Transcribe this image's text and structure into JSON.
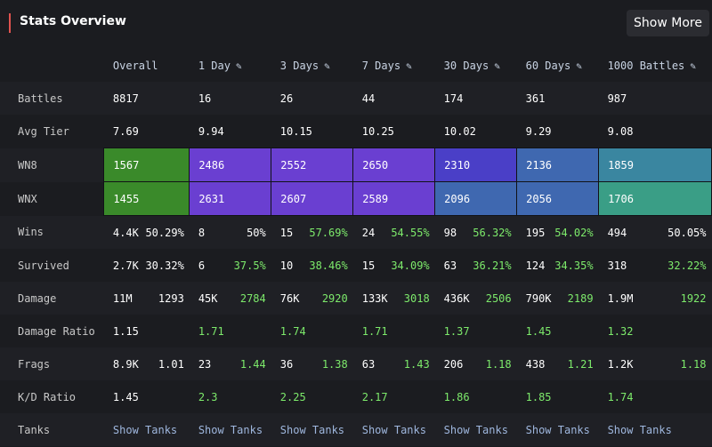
{
  "header": {
    "title": "Stats Overview",
    "show_more": "Show More"
  },
  "columns": [
    "Overall",
    "1 Day",
    "3 Days",
    "7 Days",
    "30 Days",
    "60 Days",
    "1000 Battles"
  ],
  "colors": {
    "wn_green": "#3a8a2a",
    "wn_purple": "#6a3fd1",
    "wn_blue": "#4a3fc7",
    "wn_steel": "#3f68b0",
    "wn_teal": "#3a86a0",
    "wn_seafoam": "#3a9e86",
    "good_text": "#7dea6b"
  },
  "rows": {
    "battles": {
      "label": "Battles",
      "values": [
        "8817",
        "16",
        "26",
        "44",
        "174",
        "361",
        "987"
      ]
    },
    "avg_tier": {
      "label": "Avg Tier",
      "values": [
        "7.69",
        "9.94",
        "10.15",
        "10.25",
        "10.02",
        "9.29",
        "9.08"
      ]
    },
    "wn8": {
      "label": "WN8",
      "values": [
        "1567",
        "2486",
        "2552",
        "2650",
        "2310",
        "2136",
        "1859"
      ]
    },
    "wnx": {
      "label": "WNX",
      "values": [
        "1455",
        "2631",
        "2607",
        "2589",
        "2096",
        "2056",
        "1706"
      ]
    },
    "wins": {
      "label": "Wins",
      "values": [
        [
          "4.4K",
          "50.29%"
        ],
        [
          "8",
          "50%"
        ],
        [
          "15",
          "57.69%"
        ],
        [
          "24",
          "54.55%"
        ],
        [
          "98",
          "56.32%"
        ],
        [
          "195",
          "54.02%"
        ],
        [
          "494",
          "50.05%"
        ]
      ]
    },
    "survived": {
      "label": "Survived",
      "values": [
        [
          "2.7K",
          "30.32%"
        ],
        [
          "6",
          "37.5%"
        ],
        [
          "10",
          "38.46%"
        ],
        [
          "15",
          "34.09%"
        ],
        [
          "63",
          "36.21%"
        ],
        [
          "124",
          "34.35%"
        ],
        [
          "318",
          "32.22%"
        ]
      ]
    },
    "damage": {
      "label": "Damage",
      "values": [
        [
          "11M",
          "1293"
        ],
        [
          "45K",
          "2784"
        ],
        [
          "76K",
          "2920"
        ],
        [
          "133K",
          "3018"
        ],
        [
          "436K",
          "2506"
        ],
        [
          "790K",
          "2189"
        ],
        [
          "1.9M",
          "1922"
        ]
      ]
    },
    "damage_ratio": {
      "label": "Damage Ratio",
      "values": [
        "1.15",
        "1.71",
        "1.74",
        "1.71",
        "1.37",
        "1.45",
        "1.32"
      ]
    },
    "frags": {
      "label": "Frags",
      "values": [
        [
          "8.9K",
          "1.01"
        ],
        [
          "23",
          "1.44"
        ],
        [
          "36",
          "1.38"
        ],
        [
          "63",
          "1.43"
        ],
        [
          "206",
          "1.18"
        ],
        [
          "438",
          "1.21"
        ],
        [
          "1.2K",
          "1.18"
        ]
      ]
    },
    "kd_ratio": {
      "label": "K/D Ratio",
      "values": [
        "1.45",
        "2.3",
        "2.25",
        "2.17",
        "1.86",
        "1.85",
        "1.74"
      ]
    },
    "tanks": {
      "label": "Tanks",
      "link": "Show Tanks"
    }
  }
}
